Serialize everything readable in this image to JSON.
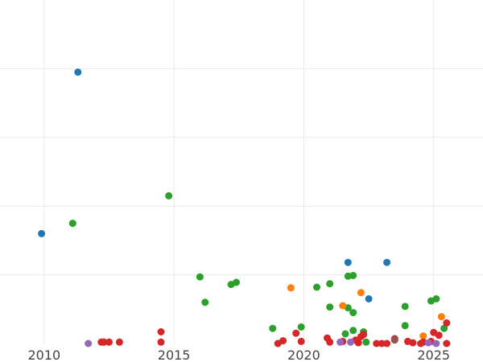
{
  "chart_data": {
    "type": "scatter",
    "title": "",
    "xlabel": "",
    "ylabel": "",
    "xlim": [
      2008.3,
      2026.9
    ],
    "ylim": [
      0,
      5
    ],
    "x_ticks": [
      2010,
      2015,
      2020,
      2025
    ],
    "y_ticks": [
      1,
      2,
      3,
      4
    ],
    "grid": true,
    "legend": "none",
    "series": [
      {
        "color": "#1f77b4",
        "points": [
          [
            2011.3,
            3.95
          ],
          [
            2009.9,
            1.6
          ],
          [
            2021.7,
            1.18
          ],
          [
            2023.2,
            1.18
          ],
          [
            2022.5,
            0.65
          ]
        ]
      },
      {
        "color": "#2ca02c",
        "points": [
          [
            2014.8,
            2.15
          ],
          [
            2011.1,
            1.75
          ],
          [
            2016.0,
            0.97
          ],
          [
            2016.2,
            0.6
          ],
          [
            2017.2,
            0.86
          ],
          [
            2017.4,
            0.89
          ],
          [
            2018.8,
            0.22
          ],
          [
            2019.9,
            0.24
          ],
          [
            2020.5,
            0.82
          ],
          [
            2021.0,
            0.53
          ],
          [
            2021.0,
            0.87
          ],
          [
            2021.7,
            0.98
          ],
          [
            2021.9,
            0.99
          ],
          [
            2021.7,
            0.52
          ],
          [
            2021.9,
            0.45
          ],
          [
            2021.6,
            0.14
          ],
          [
            2021.9,
            0.19
          ],
          [
            2022.4,
            0.02
          ],
          [
            2023.9,
            0.54
          ],
          [
            2023.9,
            0.26
          ],
          [
            2024.9,
            0.62
          ],
          [
            2025.1,
            0.65
          ],
          [
            2025.4,
            0.22
          ],
          [
            2022.3,
            0.17
          ]
        ]
      },
      {
        "color": "#ff7f0e",
        "points": [
          [
            2019.5,
            0.81
          ],
          [
            2021.5,
            0.55
          ],
          [
            2022.2,
            0.74
          ],
          [
            2024.6,
            0.11
          ],
          [
            2025.3,
            0.39
          ]
        ]
      },
      {
        "color": "#d62728",
        "points": [
          [
            2012.2,
            0.02
          ],
          [
            2012.3,
            0.02
          ],
          [
            2012.5,
            0.02
          ],
          [
            2012.9,
            0.02
          ],
          [
            2014.5,
            0.02
          ],
          [
            2014.5,
            0.17
          ],
          [
            2019.0,
            0.0
          ],
          [
            2019.2,
            0.04
          ],
          [
            2019.7,
            0.15
          ],
          [
            2019.9,
            0.03
          ],
          [
            2020.9,
            0.08
          ],
          [
            2021.0,
            0.02
          ],
          [
            2021.5,
            0.03
          ],
          [
            2022.0,
            0.05
          ],
          [
            2022.1,
            0.01
          ],
          [
            2022.2,
            0.1
          ],
          [
            2022.3,
            0.13
          ],
          [
            2022.8,
            0.0
          ],
          [
            2023.0,
            0.0
          ],
          [
            2023.2,
            0.0
          ],
          [
            2023.5,
            0.07
          ],
          [
            2024.0,
            0.03
          ],
          [
            2024.2,
            0.01
          ],
          [
            2024.5,
            0.0
          ],
          [
            2024.6,
            0.02
          ],
          [
            2024.9,
            0.03
          ],
          [
            2025.0,
            0.16
          ],
          [
            2025.2,
            0.12
          ],
          [
            2025.5,
            0.3
          ],
          [
            2025.5,
            0.0
          ]
        ]
      },
      {
        "color": "#9467bd",
        "points": [
          [
            2011.7,
            0.0
          ],
          [
            2021.4,
            0.02
          ],
          [
            2021.8,
            0.02
          ],
          [
            2024.8,
            0.01
          ],
          [
            2025.1,
            0.0
          ]
        ]
      },
      {
        "color": "#8c564b",
        "points": [
          [
            2023.5,
            0.05
          ]
        ]
      }
    ]
  }
}
